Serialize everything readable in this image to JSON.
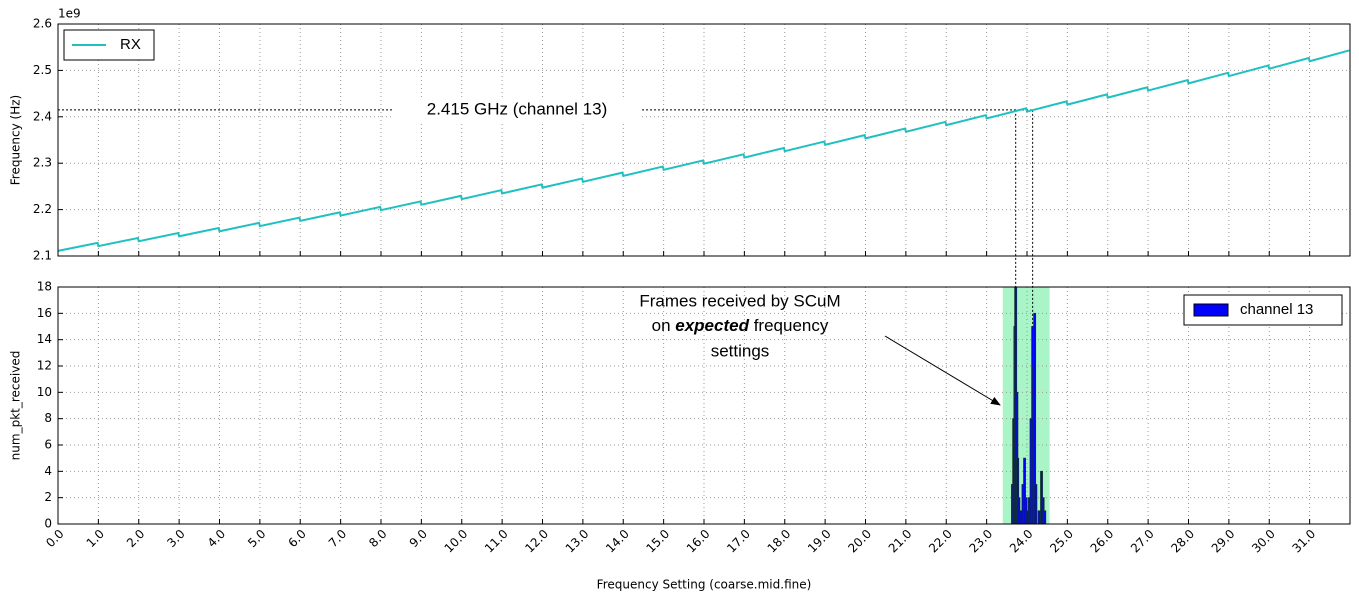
{
  "chart_data": [
    {
      "type": "line",
      "ylabel": "Frequency (Hz)",
      "y_offset_label": "1e9",
      "series": [
        {
          "name": "RX",
          "color": "#20c0c0",
          "x": [
            0,
            0.98,
            1,
            1.98,
            2,
            2.98,
            3,
            3.98,
            4,
            4.98,
            5,
            5.98,
            6,
            6.98,
            7,
            7.98,
            8,
            8.98,
            9,
            9.98,
            10,
            10.98,
            11,
            11.98,
            12,
            12.98,
            13,
            13.98,
            14,
            14.98,
            15,
            15.98,
            16,
            16.98,
            17,
            17.98,
            18,
            18.98,
            19,
            19.98,
            20,
            20.98,
            21,
            21.98,
            22,
            22.98,
            23,
            23.98,
            24,
            24.98,
            25,
            25.98,
            26,
            26.98,
            27,
            27.98,
            28,
            28.98,
            29,
            29.98,
            30,
            30.98,
            31,
            31.98
          ],
          "values": [
            2.111,
            2.1283,
            2.1213,
            2.1388,
            2.1318,
            2.1495,
            2.1425,
            2.1603,
            2.1533,
            2.1714,
            2.1644,
            2.1827,
            2.1757,
            2.1941,
            2.1871,
            2.2058,
            2.1988,
            2.2176,
            2.2106,
            2.2296,
            2.2226,
            2.2419,
            2.2349,
            2.2543,
            2.2473,
            2.2669,
            2.2599,
            2.2797,
            2.2727,
            2.2927,
            2.2857,
            2.3059,
            2.2989,
            2.3192,
            2.3122,
            2.3328,
            2.3258,
            2.3466,
            2.3396,
            2.3605,
            2.3535,
            2.3747,
            2.3677,
            2.389,
            2.382,
            2.4035,
            2.3965,
            2.4183,
            2.4113,
            2.4332,
            2.4262,
            2.4483,
            2.4413,
            2.4636,
            2.4566,
            2.4791,
            2.4721,
            2.4948,
            2.4878,
            2.5107,
            2.5037,
            2.5267,
            2.5197,
            2.543
          ]
        }
      ],
      "xlim": [
        0,
        32
      ],
      "ylim": [
        2.1,
        2.6
      ],
      "yticks": [
        2.1,
        2.2,
        2.3,
        2.4,
        2.5,
        2.6
      ],
      "grid": true,
      "legend": "upper left",
      "annotation": {
        "text": "2.415 GHz (channel 13)",
        "y": 2.415,
        "vlines": [
          23.72,
          24.14
        ]
      }
    },
    {
      "type": "bar",
      "ylabel": "num_pkt_received",
      "xlabel": "Frequency Setting (coarse.mid.fine)",
      "series": [
        {
          "name": "channel 13",
          "color": "#0000ff",
          "x": [
            23.64,
            23.67,
            23.7,
            23.72,
            23.75,
            23.77,
            23.8,
            23.85,
            23.9,
            23.94,
            23.98,
            24.02,
            24.06,
            24.1,
            24.14,
            24.17,
            24.19,
            24.22,
            24.3,
            24.36,
            24.4,
            24.44
          ],
          "values": [
            3,
            8,
            15,
            18,
            10,
            5,
            2,
            1,
            3,
            5,
            2,
            1,
            2,
            8,
            15,
            12,
            16,
            3,
            1,
            4,
            2,
            1
          ]
        }
      ],
      "span": [
        23.4,
        24.56
      ],
      "span_color": "#aaf5c8",
      "xlim": [
        0,
        32
      ],
      "ylim": [
        0,
        18
      ],
      "yticks": [
        0,
        2,
        4,
        6,
        8,
        10,
        12,
        14,
        16,
        18
      ],
      "xticks": [
        {
          "value": 0,
          "label": "0.0"
        },
        {
          "value": 1,
          "label": "1.0"
        },
        {
          "value": 2,
          "label": "2.0"
        },
        {
          "value": 3,
          "label": "3.0"
        },
        {
          "value": 4,
          "label": "4.0"
        },
        {
          "value": 5,
          "label": "5.0"
        },
        {
          "value": 6,
          "label": "6.0"
        },
        {
          "value": 7,
          "label": "7.0"
        },
        {
          "value": 8,
          "label": "8.0"
        },
        {
          "value": 9,
          "label": "9.0"
        },
        {
          "value": 10,
          "label": "10.0"
        },
        {
          "value": 11,
          "label": "11.0"
        },
        {
          "value": 12,
          "label": "12.0"
        },
        {
          "value": 13,
          "label": "13.0"
        },
        {
          "value": 14,
          "label": "14.0"
        },
        {
          "value": 15,
          "label": "15.0"
        },
        {
          "value": 16,
          "label": "16.0"
        },
        {
          "value": 17,
          "label": "17.0"
        },
        {
          "value": 18,
          "label": "18.0"
        },
        {
          "value": 19,
          "label": "19.0"
        },
        {
          "value": 20,
          "label": "20.0"
        },
        {
          "value": 21,
          "label": "21.0"
        },
        {
          "value": 22,
          "label": "22.0"
        },
        {
          "value": 23,
          "label": "23.0"
        },
        {
          "value": 24,
          "label": "24.0"
        },
        {
          "value": 25,
          "label": "25.0"
        },
        {
          "value": 26,
          "label": "26.0"
        },
        {
          "value": 27,
          "label": "27.0"
        },
        {
          "value": 28,
          "label": "28.0"
        },
        {
          "value": 29,
          "label": "29.0"
        },
        {
          "value": 30,
          "label": "30.0"
        },
        {
          "value": 31,
          "label": "31.0"
        }
      ],
      "grid": true,
      "legend": "upper right",
      "annotation": {
        "lines": [
          "Frames received by SCuM",
          "on ",
          "expected",
          " frequency",
          "settings"
        ]
      }
    }
  ]
}
